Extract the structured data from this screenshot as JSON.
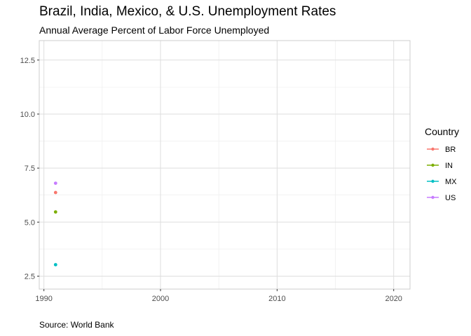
{
  "chart_data": {
    "type": "scatter",
    "title": "Brazil, India, Mexico, & U.S. Unemployment Rates",
    "subtitle": "Annual Average Percent of Labor Force Unemployed",
    "caption": "Source: World Bank",
    "xlabel": "",
    "ylabel": "",
    "xlim": [
      1989.6,
      2021.4
    ],
    "ylim": [
      1.9,
      13.4
    ],
    "x_ticks": [
      1990,
      2000,
      2010,
      2020
    ],
    "y_ticks": [
      2.5,
      5.0,
      7.5,
      10.0,
      12.5
    ],
    "y_tick_labels": [
      "2.5",
      "5.0",
      "7.5",
      "10.0",
      "12.5"
    ],
    "grid": true,
    "legend": {
      "title": "Country",
      "placement": "right"
    },
    "series": [
      {
        "name": "BR",
        "color": "#F8766D",
        "points": [
          {
            "x": 1991,
            "y": 6.37
          }
        ]
      },
      {
        "name": "IN",
        "color": "#7CAE00",
        "points": [
          {
            "x": 1991,
            "y": 5.47
          }
        ]
      },
      {
        "name": "MX",
        "color": "#00BFC4",
        "points": [
          {
            "x": 1991,
            "y": 3.03
          }
        ]
      },
      {
        "name": "US",
        "color": "#C77CFF",
        "points": [
          {
            "x": 1991,
            "y": 6.8
          }
        ]
      }
    ]
  }
}
